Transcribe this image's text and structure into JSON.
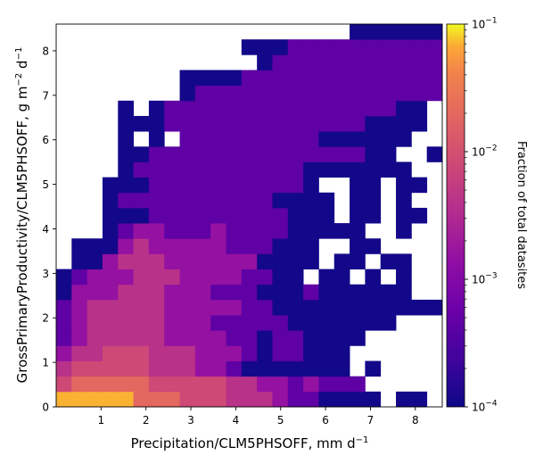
{
  "chart_data": {
    "type": "heatmap",
    "xlabel": "Precipitation/CLM5PHSOFF,  mm d",
    "xlabel_sup": "−1",
    "ylabel_parts": [
      "GrossPrimaryProductivity/CLM5PHSOFF,  g m",
      "−2",
      " d",
      "−1"
    ],
    "colorbar_label": "Fraction of total datasites",
    "colorbar_scale": "log",
    "colormap": "plasma",
    "color_range": [
      0.0001,
      0.1
    ],
    "colorbar_ticks": [
      {
        "base": "10",
        "exp": "−1",
        "value": 0.1
      },
      {
        "base": "10",
        "exp": "−2",
        "value": 0.01
      },
      {
        "base": "10",
        "exp": "−3",
        "value": 0.001
      },
      {
        "base": "10",
        "exp": "−4",
        "value": 0.0001
      }
    ],
    "xlim": [
      0,
      8.6
    ],
    "ylim": [
      0,
      8.6
    ],
    "xticks": [
      1,
      2,
      3,
      4,
      5,
      6,
      7,
      8
    ],
    "yticks": [
      0,
      1,
      2,
      3,
      4,
      5,
      6,
      7,
      8
    ],
    "bins": 25,
    "bin_width": 0.344,
    "empty_color": "#ffffff",
    "cells": [
      "gggggfffeeedddcbbaaaa.aa.",
      "efffffeeeeeddccbcbbb.....",
      "deeeeedddccbaaaaaaa.a....",
      "cddeeedddcccbabbaaa......",
      "bcdddddccccbbabbaaaa.....",
      "bcdddddcccbbbbbaaaaaaa...",
      "bcdddddcccccbbaaaaaaaaaaa",
      "acccdddcccbbbaaabaaaaaa..",
      "abcccdddccccbbaa.aa.a.a..",
      ".aacdddccccccaaaa.aa.aa..",
      ".aaacdcccccbbbaaa..aa....",
      "...abccbbbcbbbbaaaaa..a..",
      "...aaabbbbbbbbbaaa.aa.aa.",
      "...abbbbbbbbbbaaaa.aa.a..",
      "...aaabbbbbbbbbba..aa.aa.",
      "....abbbbbbbbbbbaaaaaaa..",
      "....aabbbbbbbbbbbbbbaa..a",
      "....a.a.bbbbbbbbbaaaaaa..",
      "....aaabbbbbbbbbbbbbaaaa.",
      "....a.abbbbbbbbbbbbbbbaa.",
      "........abbbbbbbbbbbbbbbb",
      "........aaaabbbbbbbbbbbbb",
      ".............abbbbbbbbbbb",
      "............aaabbbbbbbbbb",
      "...................aaaaaa"
    ],
    "level_fractions": {
      "a": 0.00011,
      "b": 0.00045,
      "c": 0.0015,
      "d": 0.004,
      "e": 0.008,
      "f": 0.02,
      "g": 0.07
    }
  }
}
